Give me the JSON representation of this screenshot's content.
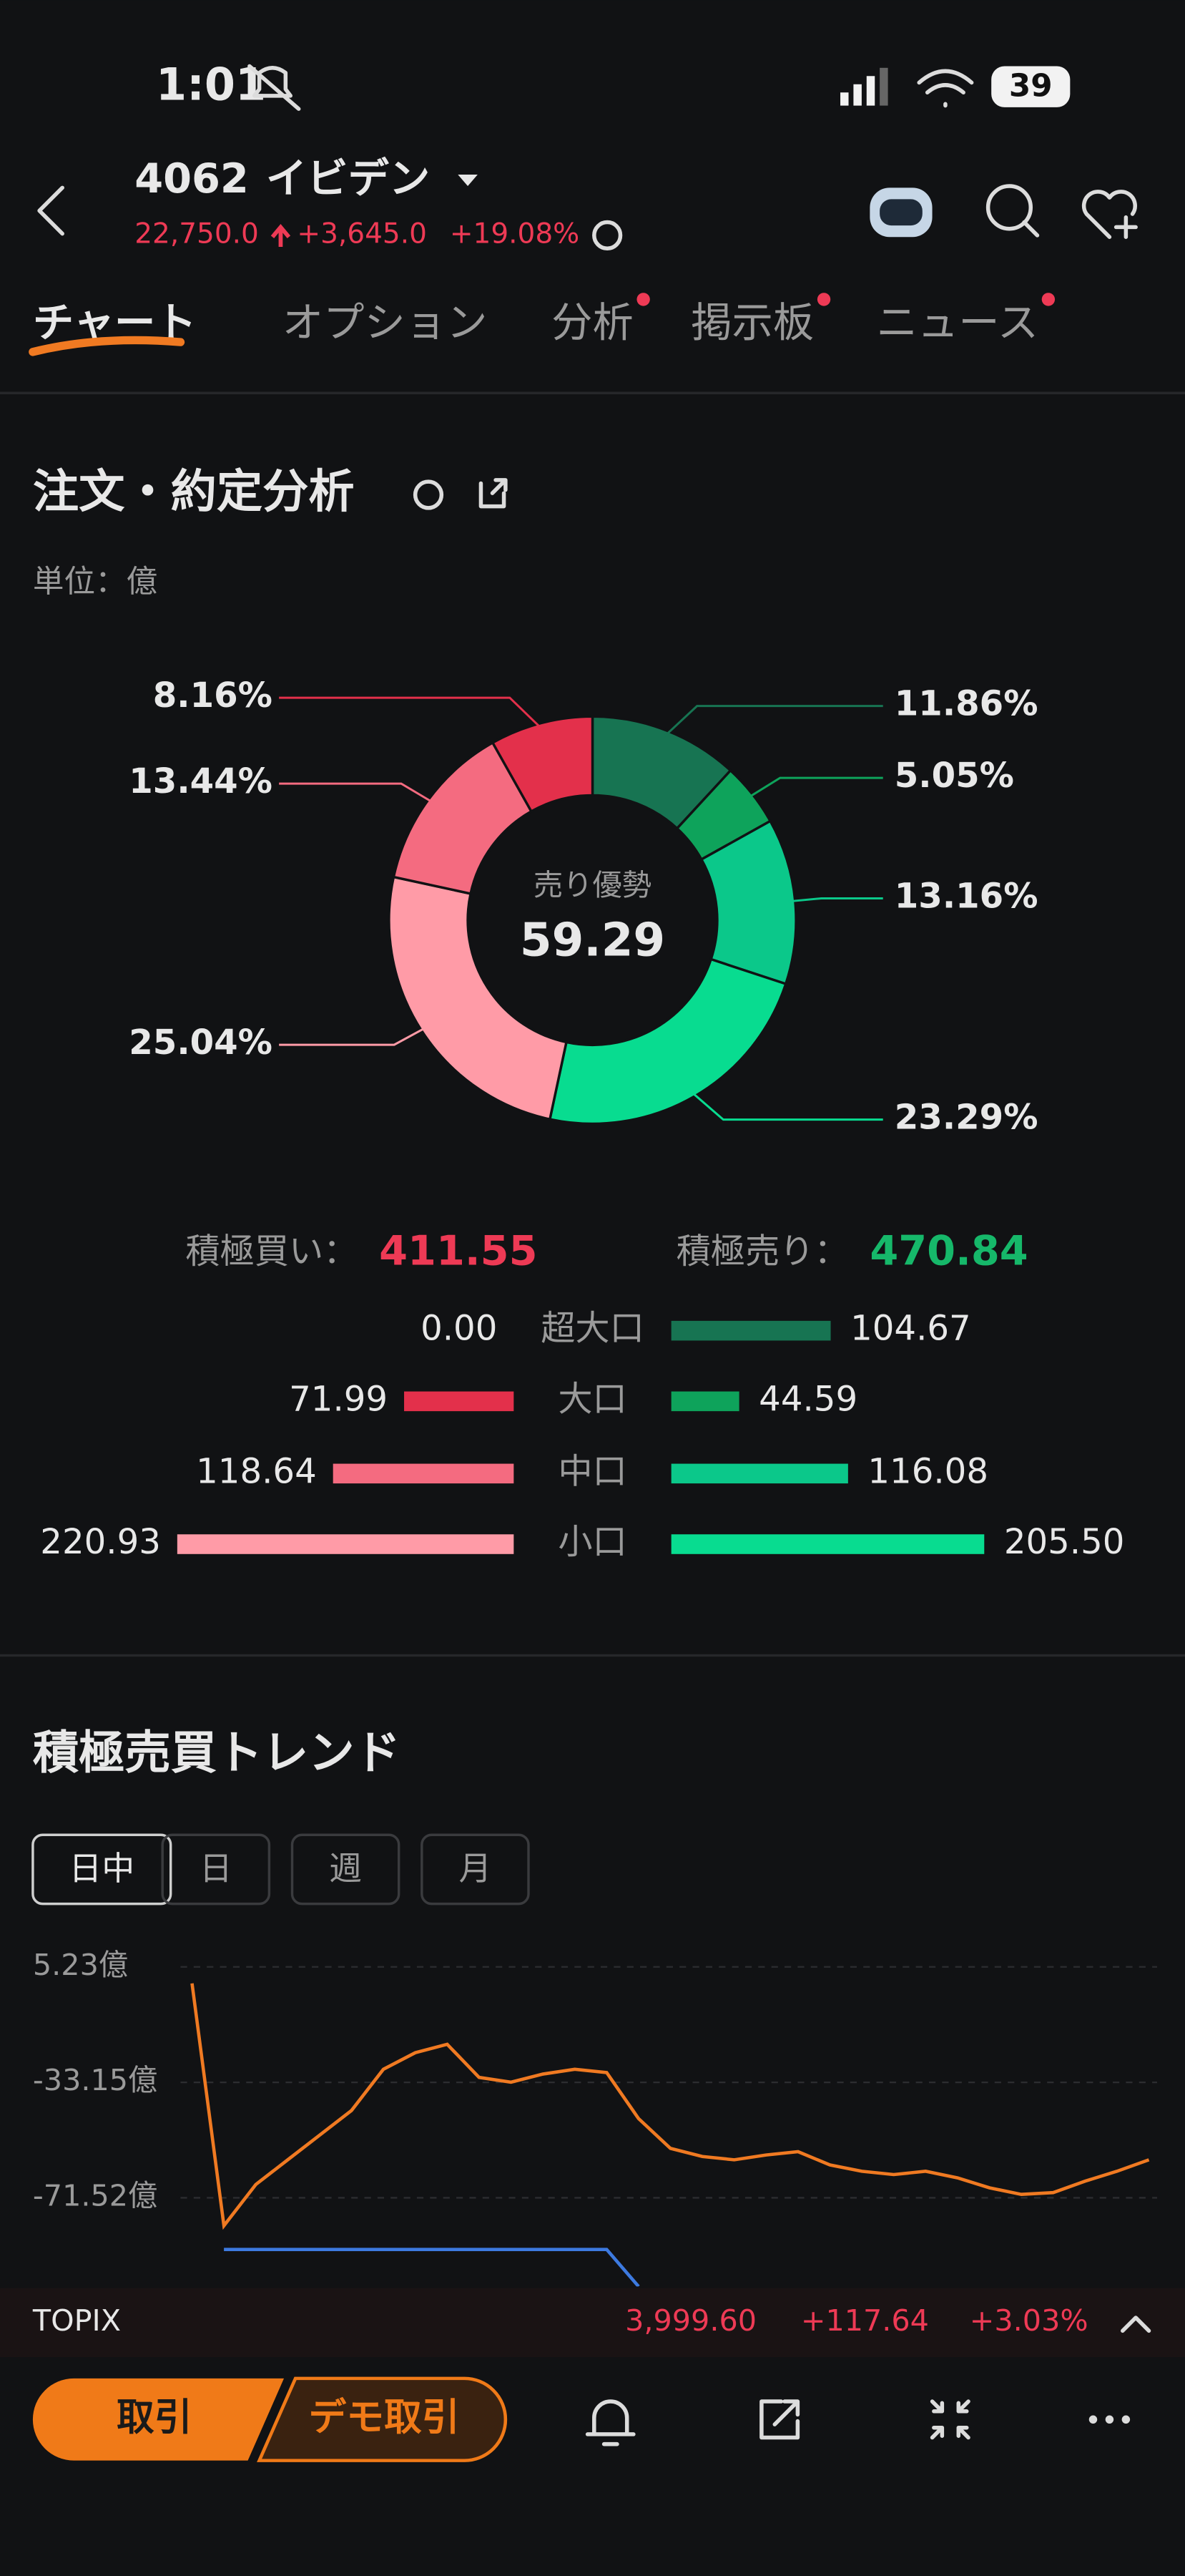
{
  "status_bar": {
    "time": "1:01",
    "battery": "39"
  },
  "header": {
    "code": "4062",
    "name": "イビデン",
    "price": "22,750.0",
    "change": "+3,645.0",
    "change_pct": "+19.08%"
  },
  "tabs": [
    "チャート",
    "オプション",
    "分析",
    "掲示板",
    "ニュース"
  ],
  "chart_data": [
    {
      "type": "pie",
      "title": "注文・約定分析",
      "subtitle": "単位：億",
      "center_label": "売り優勢",
      "center_value": "59.29",
      "values": [
        11.86,
        5.05,
        13.16,
        23.29,
        25.04,
        13.44,
        8.16
      ],
      "value_labels": [
        "11.86%",
        "5.05%",
        "13.16%",
        "23.29%",
        "25.04%",
        "13.44%",
        "8.16%"
      ],
      "colors": [
        "#177452",
        "#0ea35b",
        "#0bc88a",
        "#08dc90",
        "#ff9ba7",
        "#f46b80",
        "#e3304b"
      ]
    },
    {
      "type": "bar",
      "categories": [
        "超大口",
        "大口",
        "中口",
        "小口"
      ],
      "series": [
        {
          "name": "積極買い：",
          "total": "411.55",
          "color": "#e3304b",
          "colors": [
            "#e3304b",
            "#e3304b",
            "#f46b80",
            "#ff9ba7"
          ],
          "values": [
            0,
            71.99,
            118.64,
            220.93
          ],
          "value_labels": [
            "0.00",
            "71.99",
            "118.64",
            "220.93"
          ]
        },
        {
          "name": "積極売り：",
          "total": "470.84",
          "color": "#0ea35b",
          "colors": [
            "#177452",
            "#0ea35b",
            "#0bc88a",
            "#08dc90"
          ],
          "values": [
            104.67,
            44.59,
            116.08,
            205.5
          ],
          "value_labels": [
            "104.67",
            "44.59",
            "116.08",
            "205.50"
          ]
        }
      ]
    },
    {
      "type": "line",
      "title": "積極売買トレンド",
      "ranges": [
        "日中",
        "日",
        "週",
        "月"
      ],
      "ylim": [
        -101,
        12
      ],
      "yticks": [
        {
          "value": 5.23,
          "label": "5.23億"
        },
        {
          "value": -33.15,
          "label": "-33.15億"
        },
        {
          "value": -71.52,
          "label": "-71.52億"
        }
      ],
      "grid": true,
      "series": [
        {
          "color": "#f07a22",
          "values": [
            -0.25,
            -80.8,
            -67.1,
            -58.9,
            -50.7,
            -42.5,
            -28.8,
            -23.3,
            -20.5,
            -31.5,
            -33.1,
            -30.4,
            -28.8,
            -29.9,
            -45.2,
            -55.1,
            -57.8,
            -58.9,
            -57.3,
            -56.2,
            -60.6,
            -62.7,
            -63.8,
            -62.7,
            -64.9,
            -68.2,
            -70.4,
            -69.8,
            -66.0,
            -62.7,
            -58.9
          ]
        },
        {
          "color": "#3d7ae0",
          "values": [
            null,
            -88.7,
            -88.7,
            -88.7,
            -88.7,
            -88.7,
            -88.7,
            -88.7,
            -88.7,
            -88.7,
            -88.7,
            -88.7,
            -88.7,
            -88.7,
            -101,
            null,
            null,
            null,
            null,
            null,
            null,
            null,
            null,
            null,
            null,
            null,
            null,
            null,
            null,
            null,
            null
          ]
        }
      ]
    }
  ],
  "ticker": {
    "name": "TOPIX",
    "price": "3,999.60",
    "change": "+117.64",
    "change_pct": "+3.03%"
  },
  "actions": {
    "trade": "取引",
    "demo": "デモ取引"
  }
}
